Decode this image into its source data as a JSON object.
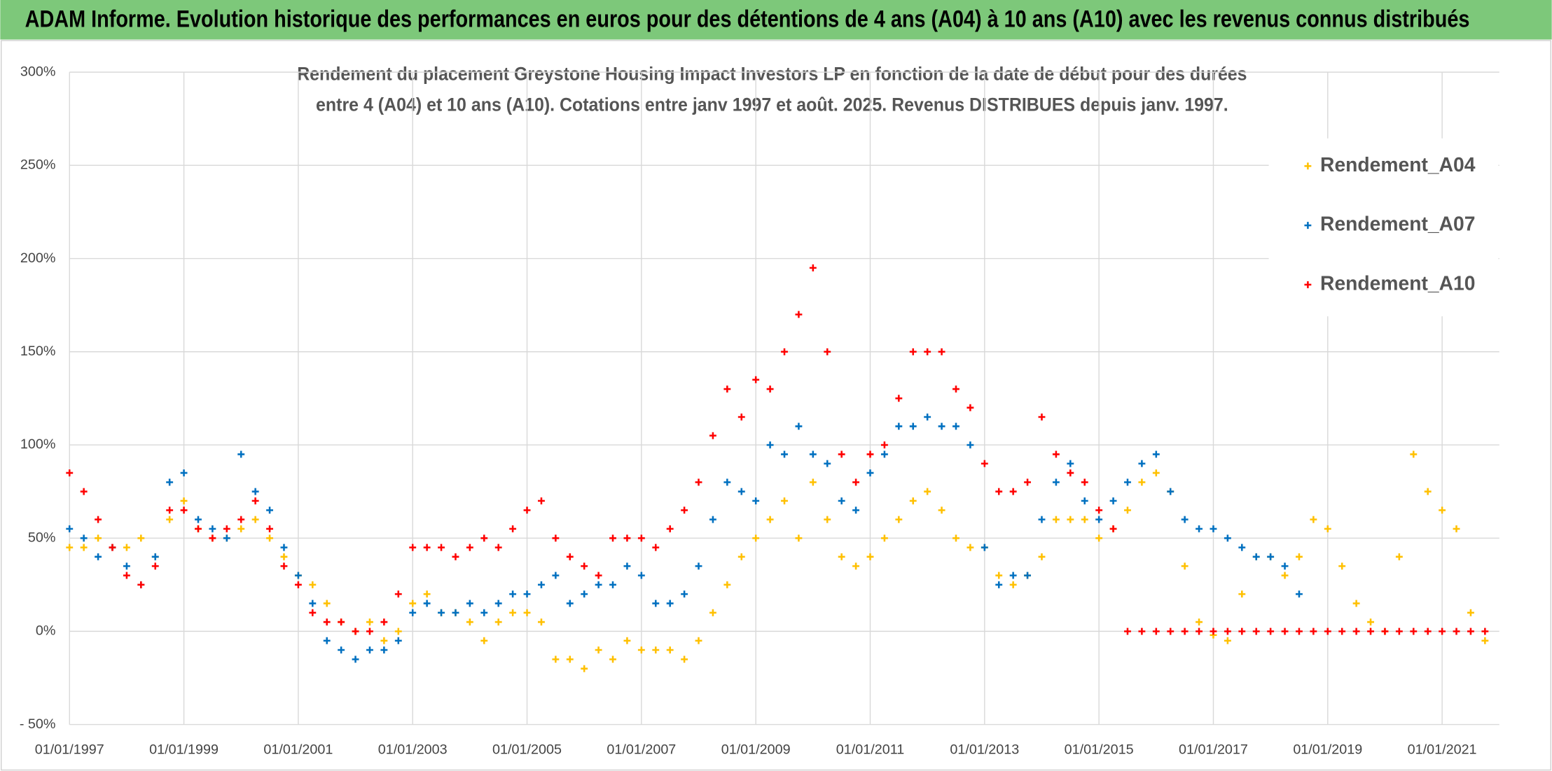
{
  "header": {
    "title": "ADAM Informe. Evolution historique des performances en euros pour des détentions de 4 ans (A04) à 10 ans (A10) avec les revenus connus distribués"
  },
  "chart_data": {
    "type": "scatter",
    "title": [
      "Rendement du placement Greystone Housing Impact Investors LP en fonction de la date de début pour des durées",
      "entre 4 (A04) et 10 ans (A10). Cotations entre janv 1997 et août. 2025. Revenus DISTRIBUES depuis janv. 1997."
    ],
    "x": [
      "01/01/1997",
      "01/04/1997",
      "01/07/1997",
      "01/10/1997",
      "01/01/1998",
      "01/04/1998",
      "01/07/1998",
      "01/10/1998",
      "01/01/1999",
      "01/04/1999",
      "01/07/1999",
      "01/10/1999",
      "01/01/2000",
      "01/04/2000",
      "01/07/2000",
      "01/10/2000",
      "01/01/2001",
      "01/04/2001",
      "01/07/2001",
      "01/10/2001",
      "01/01/2002",
      "01/04/2002",
      "01/07/2002",
      "01/10/2002",
      "01/01/2003",
      "01/04/2003",
      "01/07/2003",
      "01/10/2003",
      "01/01/2004",
      "01/04/2004",
      "01/07/2004",
      "01/10/2004",
      "01/01/2005",
      "01/04/2005",
      "01/07/2005",
      "01/10/2005",
      "01/01/2006",
      "01/04/2006",
      "01/07/2006",
      "01/10/2006",
      "01/01/2007",
      "01/04/2007",
      "01/07/2007",
      "01/10/2007",
      "01/01/2008",
      "01/04/2008",
      "01/07/2008",
      "01/10/2008",
      "01/01/2009",
      "01/04/2009",
      "01/07/2009",
      "01/10/2009",
      "01/01/2010",
      "01/04/2010",
      "01/07/2010",
      "01/10/2010",
      "01/01/2011",
      "01/04/2011",
      "01/07/2011",
      "01/10/2011",
      "01/01/2012",
      "01/04/2012",
      "01/07/2012",
      "01/10/2012",
      "01/01/2013",
      "01/04/2013",
      "01/07/2013",
      "01/10/2013",
      "01/01/2014",
      "01/04/2014",
      "01/07/2014",
      "01/10/2014",
      "01/01/2015",
      "01/04/2015",
      "01/07/2015",
      "01/10/2015",
      "01/01/2016",
      "01/04/2016",
      "01/07/2016",
      "01/10/2016",
      "01/01/2017",
      "01/04/2017",
      "01/07/2017",
      "01/10/2017",
      "01/01/2018",
      "01/04/2018",
      "01/07/2018",
      "01/10/2018",
      "01/01/2019",
      "01/04/2019",
      "01/07/2019",
      "01/10/2019",
      "01/01/2020",
      "01/04/2020",
      "01/07/2020",
      "01/10/2020",
      "01/01/2021",
      "01/04/2021",
      "01/07/2021",
      "01/10/2021"
    ],
    "series": [
      {
        "name": "Rendement_A04",
        "color": "#FFC000",
        "values": [
          45,
          45,
          50,
          45,
          45,
          50,
          40,
          60,
          70,
          55,
          50,
          50,
          55,
          60,
          50,
          40,
          30,
          25,
          15,
          5,
          0,
          5,
          -5,
          0,
          15,
          20,
          10,
          10,
          5,
          -5,
          5,
          10,
          10,
          5,
          -15,
          -15,
          -20,
          -10,
          -15,
          -5,
          -10,
          -10,
          -10,
          -15,
          -5,
          10,
          25,
          40,
          50,
          60,
          70,
          50,
          80,
          60,
          40,
          35,
          40,
          50,
          60,
          70,
          75,
          65,
          50,
          45,
          45,
          30,
          25,
          30,
          40,
          60,
          60,
          60,
          50,
          55,
          65,
          80,
          85,
          75,
          35,
          5,
          -2,
          -5,
          20,
          40,
          40,
          30,
          40,
          60,
          55,
          35,
          15,
          5,
          0,
          40,
          95,
          75,
          65,
          55,
          10,
          -5
        ]
      },
      {
        "name": "Rendement_A07",
        "color": "#0070C0",
        "values": [
          55,
          50,
          40,
          45,
          35,
          25,
          40,
          80,
          85,
          60,
          55,
          50,
          95,
          75,
          65,
          45,
          30,
          15,
          -5,
          -10,
          -15,
          -10,
          -10,
          -5,
          10,
          15,
          10,
          10,
          15,
          10,
          15,
          20,
          20,
          25,
          30,
          15,
          20,
          25,
          25,
          35,
          30,
          15,
          15,
          20,
          35,
          60,
          80,
          75,
          70,
          100,
          95,
          110,
          95,
          90,
          70,
          65,
          85,
          95,
          110,
          110,
          115,
          110,
          110,
          100,
          45,
          25,
          30,
          30,
          60,
          80,
          90,
          70,
          60,
          70,
          80,
          90,
          95,
          75,
          60,
          55,
          55,
          50,
          45,
          40,
          40,
          35,
          20,
          null,
          null,
          null,
          null,
          null,
          null,
          null,
          null,
          null,
          null,
          null,
          null,
          null
        ]
      },
      {
        "name": "Rendement_A10",
        "color": "#FF0000",
        "values": [
          85,
          75,
          60,
          45,
          30,
          25,
          35,
          65,
          65,
          55,
          50,
          55,
          60,
          70,
          55,
          35,
          25,
          10,
          5,
          5,
          0,
          0,
          5,
          20,
          45,
          45,
          45,
          40,
          45,
          50,
          45,
          55,
          65,
          70,
          50,
          40,
          35,
          30,
          50,
          50,
          50,
          45,
          55,
          65,
          80,
          105,
          130,
          115,
          135,
          130,
          150,
          170,
          195,
          150,
          95,
          80,
          95,
          100,
          125,
          150,
          150,
          150,
          130,
          120,
          90,
          75,
          75,
          80,
          115,
          95,
          85,
          80,
          65,
          55,
          0,
          0,
          0,
          0,
          0,
          0,
          0,
          0,
          0,
          0,
          0,
          0,
          0,
          0,
          0,
          0,
          0,
          0,
          0,
          0,
          0,
          0,
          0,
          0,
          0,
          0
        ]
      }
    ],
    "xlim": [
      "01/01/1997",
      "01/01/2022"
    ],
    "xticks": [
      "01/01/1997",
      "01/01/1999",
      "01/01/2001",
      "01/01/2003",
      "01/01/2005",
      "01/01/2007",
      "01/01/2009",
      "01/01/2011",
      "01/01/2013",
      "01/01/2015",
      "01/01/2017",
      "01/01/2019",
      "01/01/2021"
    ],
    "ylim": [
      -50,
      300
    ],
    "yticks": [
      {
        "value": -50,
        "label": "- 50%"
      },
      {
        "value": 0,
        "label": "0%"
      },
      {
        "value": 50,
        "label": "50%"
      },
      {
        "value": 100,
        "label": "100%"
      },
      {
        "value": 150,
        "label": "150%"
      },
      {
        "value": 200,
        "label": "200%"
      },
      {
        "value": 250,
        "label": "250%"
      },
      {
        "value": 300,
        "label": "300%"
      }
    ],
    "grid": true,
    "legend": "top-right"
  }
}
